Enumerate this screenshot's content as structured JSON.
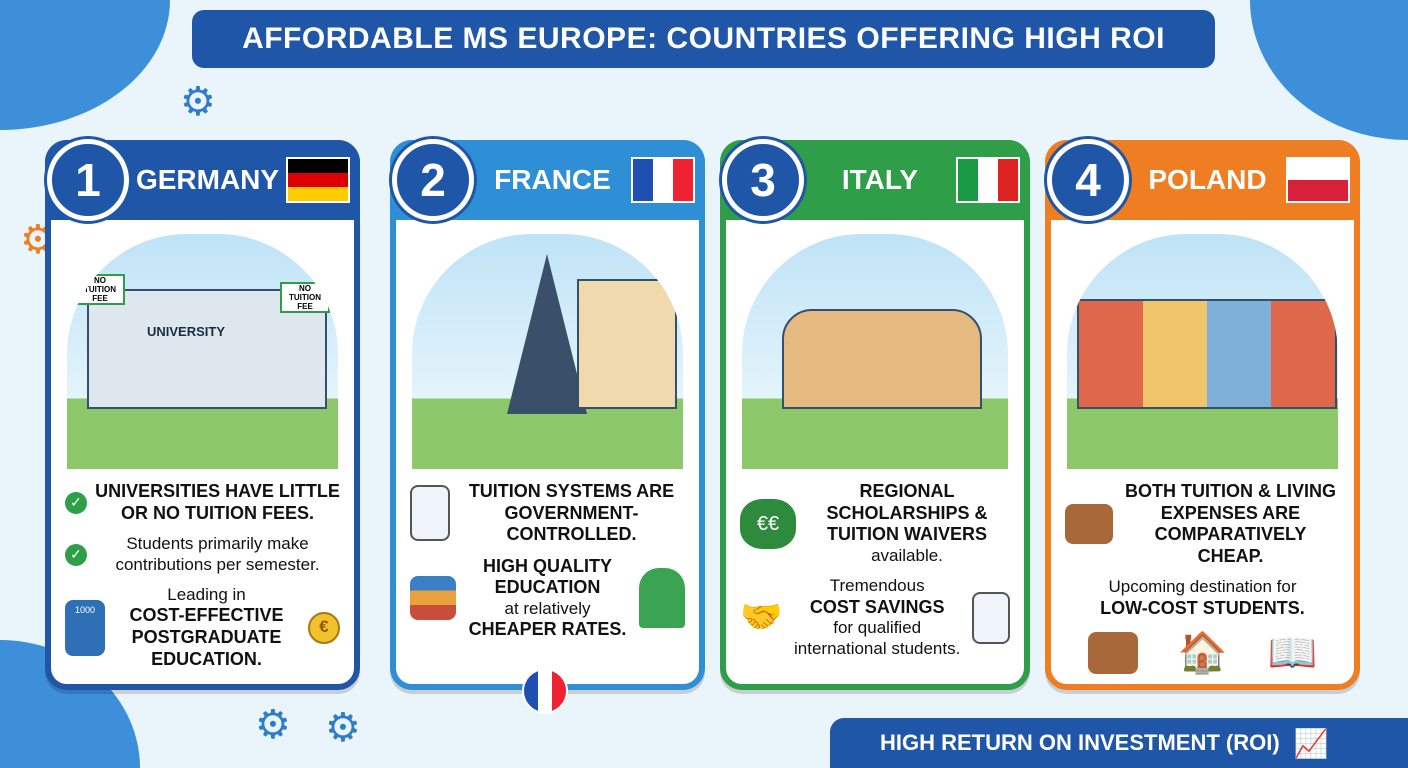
{
  "title": "AFFORDABLE MS EUROPE: COUNTRIES OFFERING HIGH ROI",
  "footer": "HIGH RETURN ON INVESTMENT (ROI)",
  "colors": {
    "germany": "#1f56a8",
    "france": "#2f8fd6",
    "italy": "#2e9e48",
    "poland": "#ef7d22",
    "banner": "#1f56a8"
  },
  "cards": [
    {
      "num": "1",
      "name": "GERMANY",
      "signs": [
        "NO TUITION FEE",
        "NO TUITION FEE"
      ],
      "building": "UNIVERSITY",
      "calc": "1000",
      "l1": "UNIVERSITIES HAVE LITTLE OR NO TUITION FEES.",
      "l2": "Students primarily make contributions per semester.",
      "l3a": "Leading in",
      "l3b": "COST-EFFECTIVE POSTGRADUATE EDUCATION."
    },
    {
      "num": "2",
      "name": "FRANCE",
      "l1": "TUITION SYSTEMS ARE GOVERNMENT-CONTROLLED.",
      "l2a": "HIGH QUALITY EDUCATION",
      "l2b": "at relatively",
      "l2c": "CHEAPER RATES."
    },
    {
      "num": "3",
      "name": "ITALY",
      "l1a": "REGIONAL SCHOLARSHIPS & TUITION WAIVERS",
      "l1b": "available.",
      "l2a": "Tremendous",
      "l2b": "COST SAVINGS",
      "l2c": "for qualified international students."
    },
    {
      "num": "4",
      "name": "POLAND",
      "l1": "BOTH TUITION & LIVING EXPENSES ARE COMPARATIVELY CHEAP.",
      "l2a": "Upcoming destination for",
      "l2b": "LOW-COST STUDENTS."
    }
  ],
  "icons": [
    "gear-icon",
    "calculator-icon",
    "map-icon",
    "euro-coin-icon",
    "money-bag-icon",
    "handshake-icon",
    "certificate-icon",
    "wallet-icon",
    "house-icon",
    "book-icon",
    "growth-chart-icon"
  ]
}
